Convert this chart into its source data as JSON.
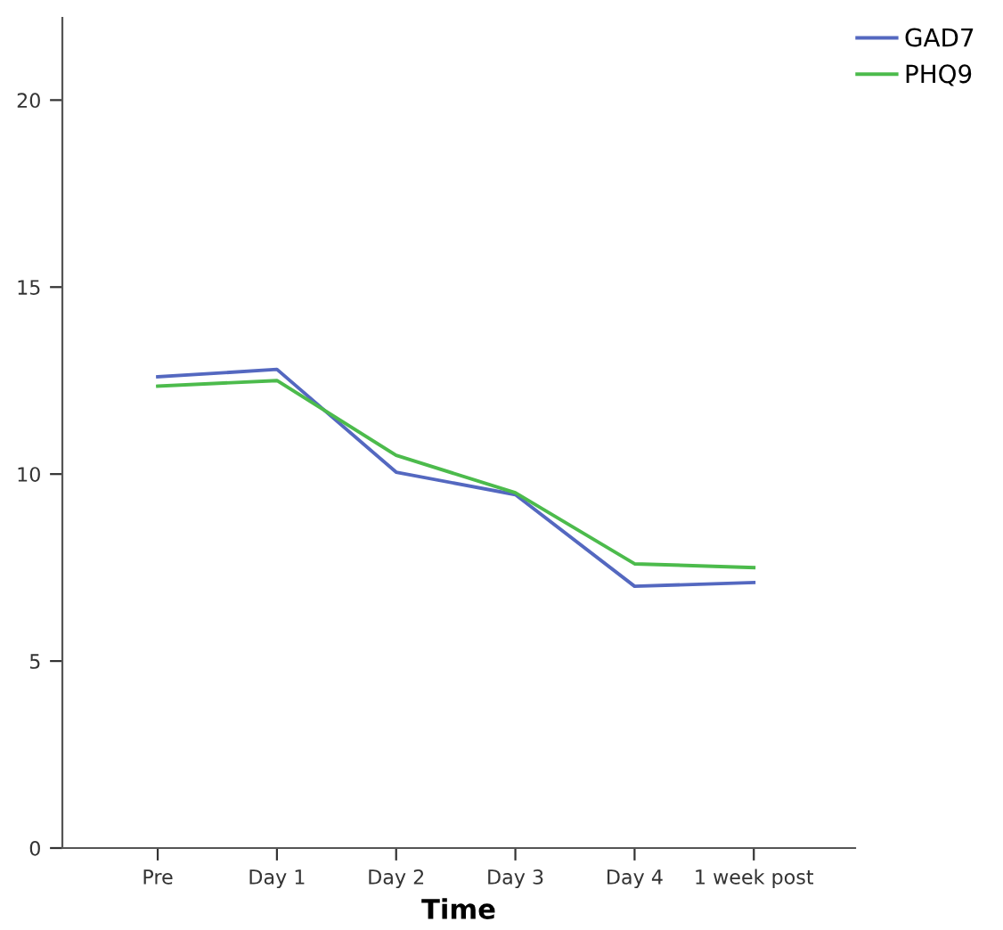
{
  "chart_data": {
    "type": "line",
    "xlabel": "Time",
    "categories": [
      "Pre",
      "Day 1",
      "Day 2",
      "Day 3",
      "Day 4",
      "1 week post"
    ],
    "series": [
      {
        "name": "GAD7",
        "color": "#5468c0",
        "values": [
          12.6,
          12.8,
          10.05,
          9.45,
          7.0,
          7.1
        ]
      },
      {
        "name": "PHQ9",
        "color": "#4cbb4c",
        "values": [
          12.35,
          12.5,
          10.5,
          9.5,
          7.6,
          7.5
        ]
      }
    ],
    "ylim": [
      0,
      22.2
    ],
    "yticks": [
      0,
      5,
      10,
      15,
      20
    ],
    "grid": false,
    "legend": "top right",
    "marker": "none",
    "line_style": "solid"
  }
}
